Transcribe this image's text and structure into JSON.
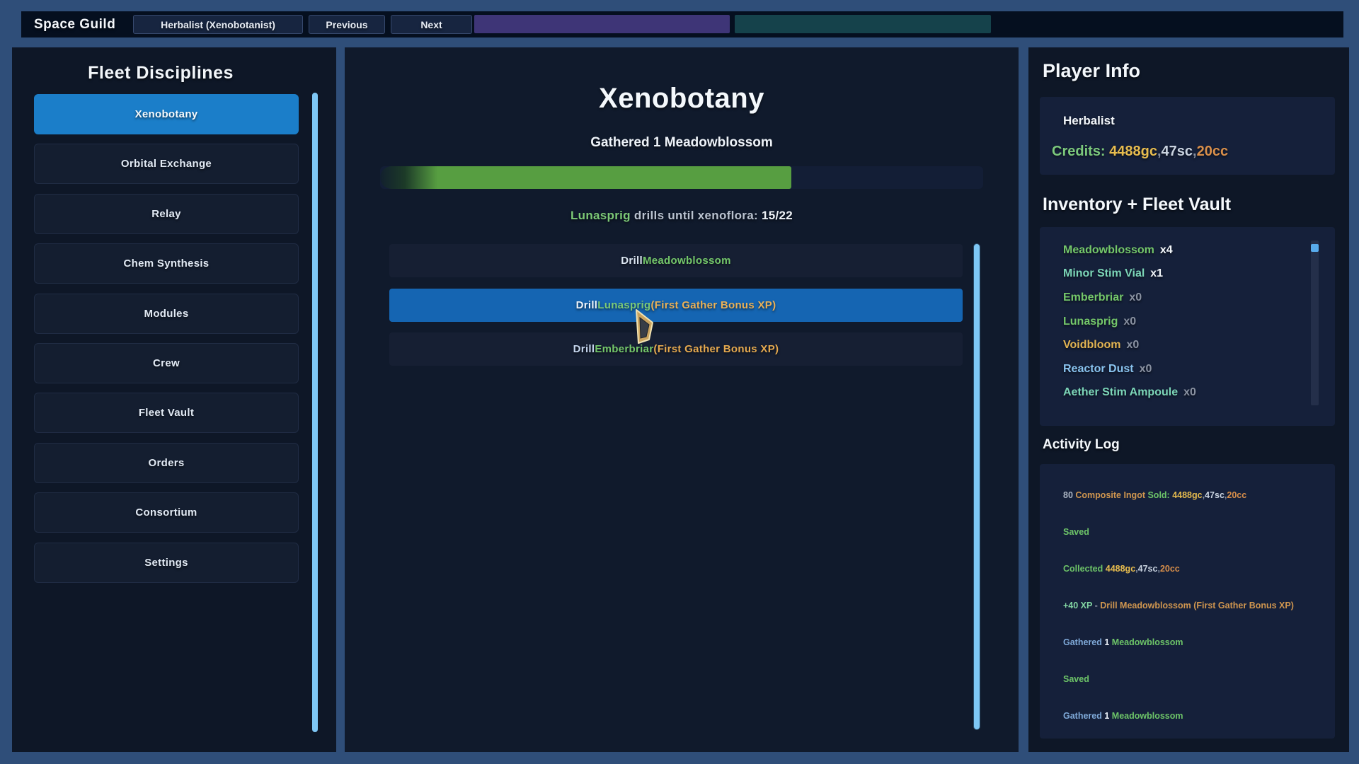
{
  "app": {
    "title": "Space Guild"
  },
  "colors": {
    "frame_blue": "#2f4e79",
    "accent_scrollbar": "#7ec7f5",
    "sidebar_active_blue": "#1b7ec9",
    "action_active_blue": "#1565b2",
    "progress_green": "#579e41"
  },
  "topbar": {
    "class_button": "Herbalist (Xenobotanist)",
    "previous": "Previous",
    "next": "Next",
    "bar1_color": "#3e3577",
    "bar2_color": "#15424b"
  },
  "sidebar": {
    "title": "Fleet Disciplines",
    "items": [
      {
        "label": "Xenobotany"
      },
      {
        "label": "Orbital Exchange"
      },
      {
        "label": "Relay"
      },
      {
        "label": "Chem Synthesis"
      },
      {
        "label": "Modules"
      },
      {
        "label": "Crew"
      },
      {
        "label": "Fleet Vault"
      },
      {
        "label": "Orders"
      },
      {
        "label": "Consortium"
      },
      {
        "label": "Settings"
      }
    ],
    "active_index": 0
  },
  "main": {
    "title": "Xenobotany",
    "subtitle": "Gathered 1 Meadowblossom",
    "progress": {
      "current": 15,
      "max": 22,
      "percent": 68.2,
      "fill_color": "#579e41",
      "label": [
        {
          "t": "Lunasprig",
          "c": "#7dca77"
        },
        {
          "t": " drills until xenoflora: ",
          "c": "#b9c2cf"
        },
        {
          "t": "15/22",
          "c": "#eef2f7"
        }
      ]
    },
    "actions": [
      {
        "parts": [
          {
            "t": "Drill ",
            "c": "#dce6f2"
          },
          {
            "t": "Meadowblossom",
            "c": "#74c76a"
          }
        ]
      },
      {
        "active": true,
        "parts": [
          {
            "t": "Drill ",
            "c": "#eef4fa"
          },
          {
            "t": "Lunasprig",
            "c": "#7dca77"
          },
          {
            "t": " (First Gather Bonus XP)",
            "c": "#eab157"
          }
        ]
      },
      {
        "parts": [
          {
            "t": "Drill ",
            "c": "#c6d6ee"
          },
          {
            "t": "Emberbriar",
            "c": "#74c76a"
          },
          {
            "t": " (First Gather Bonus XP)",
            "c": "#e5a94f"
          }
        ]
      }
    ]
  },
  "player": {
    "heading": "Player Info",
    "class_name": "Herbalist",
    "credits": [
      {
        "t": "Credits:",
        "c": "#7cc97c"
      },
      {
        "t": " 4488gc",
        "c": "#e7bc4e"
      },
      {
        "t": ",",
        "c": "#8a93a3"
      },
      {
        "t": "47sc",
        "c": "#c9d3e0"
      },
      {
        "t": ",",
        "c": "#8a93a3"
      },
      {
        "t": "20cc",
        "c": "#d98f4a"
      }
    ]
  },
  "inventory": {
    "heading": "Inventory + Fleet Vault",
    "items": [
      {
        "name": "Meadowblossom",
        "name_color": "#74c76a",
        "qty": "x4",
        "qty_color": "#f2f6fa"
      },
      {
        "name": "Minor Stim Vial",
        "name_color": "#7cd6b8",
        "qty": "x1",
        "qty_color": "#f2f6fa"
      },
      {
        "name": "Emberbriar",
        "name_color": "#74c76a",
        "qty": "x0",
        "qty_color": "#8a92a2"
      },
      {
        "name": "Lunasprig",
        "name_color": "#74c76a",
        "qty": "x0",
        "qty_color": "#8a92a2"
      },
      {
        "name": "Voidbloom",
        "name_color": "#e3b452",
        "qty": "x0",
        "qty_color": "#8a92a2"
      },
      {
        "name": "Reactor Dust",
        "name_color": "#8ac4f0",
        "qty": "x0",
        "qty_color": "#8a92a2"
      },
      {
        "name": "Aether Stim Ampoule",
        "name_color": "#7cd6b8",
        "qty": "x0",
        "qty_color": "#8a92a2"
      }
    ]
  },
  "log": {
    "heading": "Activity Log",
    "entries": [
      {
        "parts": [
          {
            "t": "80 ",
            "c": "#aab4c2"
          },
          {
            "t": "Composite Ingot",
            "c": "#d0964f"
          },
          {
            "t": " Sold: ",
            "c": "#6dc468"
          },
          {
            "t": "4488gc",
            "c": "#e7bc4e"
          },
          {
            "t": ",",
            "c": "#8a93a3"
          },
          {
            "t": "47sc",
            "c": "#c9d3e0"
          },
          {
            "t": ",",
            "c": "#8a93a3"
          },
          {
            "t": "20cc",
            "c": "#d98f4a"
          }
        ]
      },
      {
        "parts": [
          {
            "t": "Saved",
            "c": "#6dc468"
          }
        ]
      },
      {
        "parts": [
          {
            "t": "Collected ",
            "c": "#6dc468"
          },
          {
            "t": "4488gc",
            "c": "#e7bc4e"
          },
          {
            "t": ",",
            "c": "#8a93a3"
          },
          {
            "t": "47sc",
            "c": "#c9d3e0"
          },
          {
            "t": ",",
            "c": "#8a93a3"
          },
          {
            "t": "20cc",
            "c": "#d98f4a"
          }
        ]
      },
      {
        "parts": [
          {
            "t": "+40 XP",
            "c": "#83d6a3"
          },
          {
            "t": " - ",
            "c": "#9aa3b2"
          },
          {
            "t": "Drill Meadowblossom (First Gather Bonus XP)",
            "c": "#d0964f"
          }
        ]
      },
      {
        "parts": [
          {
            "t": "Gathered ",
            "c": "#7fa9d8"
          },
          {
            "t": "1 ",
            "c": "#e9eef6"
          },
          {
            "t": "Meadowblossom",
            "c": "#6dc468"
          }
        ]
      },
      {
        "parts": [
          {
            "t": "Saved",
            "c": "#6dc468"
          }
        ]
      },
      {
        "parts": [
          {
            "t": "Gathered ",
            "c": "#7fa9d8"
          },
          {
            "t": "1 ",
            "c": "#e9eef6"
          },
          {
            "t": "Meadowblossom",
            "c": "#6dc468"
          }
        ]
      }
    ]
  }
}
